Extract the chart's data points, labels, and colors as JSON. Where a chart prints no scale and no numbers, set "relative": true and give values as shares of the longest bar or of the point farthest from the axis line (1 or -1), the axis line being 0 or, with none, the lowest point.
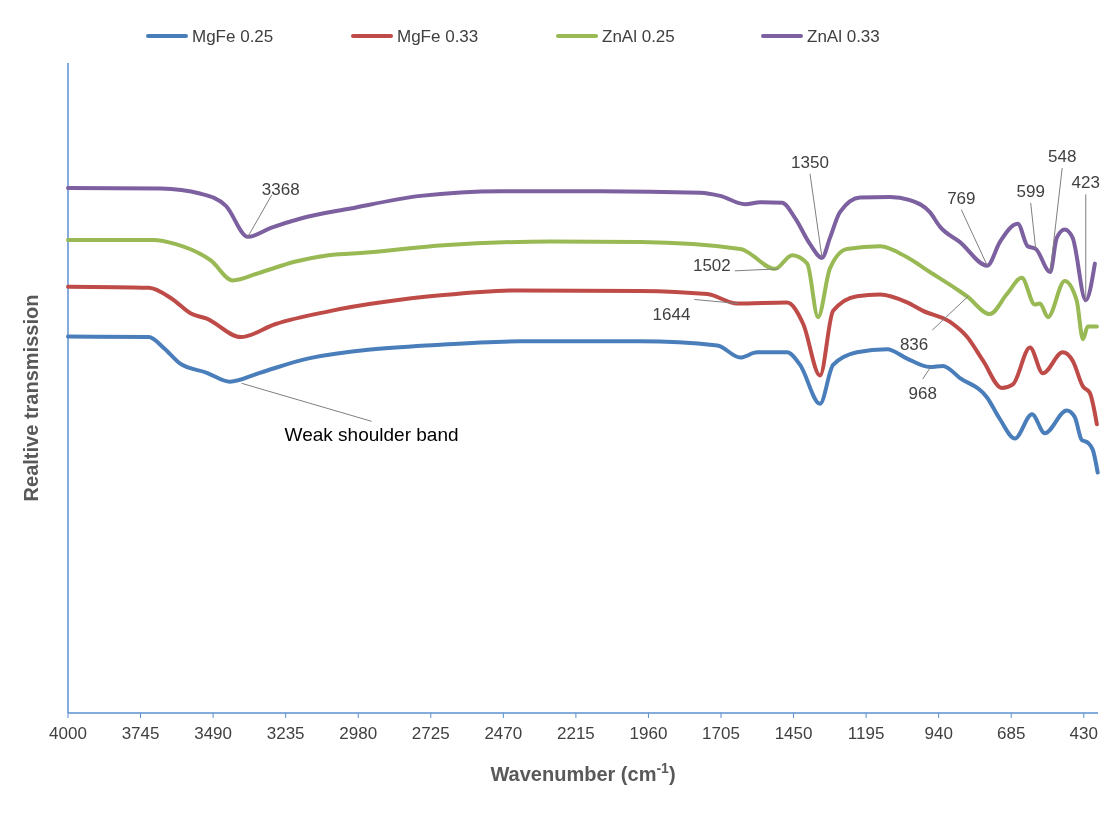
{
  "chart_data": {
    "type": "line",
    "relative": true,
    "xlabel": "Wavenumber (cm$^{-1}$)",
    "ylabel": "Realtive transmission",
    "legend": "top",
    "xlim": [
      4000,
      380
    ],
    "xticks": [
      4000,
      3745,
      3490,
      3235,
      2980,
      2725,
      2470,
      2215,
      1960,
      1705,
      1450,
      1195,
      940,
      685,
      430
    ],
    "series": [
      {
        "name": "MgFe 0.25",
        "color": "#4a7ebb",
        "x": [
          4000,
          3716,
          3663,
          3607,
          3512,
          3431,
          3326,
          3150,
          2680,
          2410,
          1989,
          1718,
          1637,
          1578,
          1473,
          1427,
          1357,
          1311,
          1227,
          1121,
          1051,
          971,
          925,
          865,
          770,
          725,
          672,
          612,
          567,
          490,
          462,
          437,
          416,
          398,
          381
        ],
        "values": [
          0.717,
          0.716,
          0.695,
          0.666,
          0.648,
          0.631,
          0.648,
          0.676,
          0.702,
          0.708,
          0.708,
          0.7,
          0.677,
          0.687,
          0.687,
          0.663,
          0.589,
          0.663,
          0.687,
          0.693,
          0.675,
          0.659,
          0.661,
          0.638,
          0.601,
          0.56,
          0.523,
          0.569,
          0.533,
          0.576,
          0.564,
          0.52,
          0.515,
          0.501,
          0.458
        ]
      },
      {
        "name": "MgFe 0.33",
        "color": "#be4b48",
        "x": [
          4000,
          3716,
          3635,
          3568,
          3512,
          3393,
          3270,
          3084,
          2680,
          2410,
          1989,
          1753,
          1648,
          1473,
          1416,
          1357,
          1311,
          1227,
          1146,
          1051,
          995,
          900,
          841,
          784,
          718,
          679,
          619,
          574,
          504,
          469,
          433,
          409,
          384
        ],
        "values": [
          0.812,
          0.81,
          0.789,
          0.761,
          0.751,
          0.716,
          0.741,
          0.765,
          0.796,
          0.805,
          0.804,
          0.798,
          0.78,
          0.782,
          0.741,
          0.643,
          0.766,
          0.794,
          0.797,
          0.782,
          0.766,
          0.745,
          0.717,
          0.671,
          0.619,
          0.626,
          0.696,
          0.647,
          0.687,
          0.671,
          0.622,
          0.61,
          0.55
        ]
      },
      {
        "name": "ZnAl 0.25",
        "color": "#98b954",
        "x": [
          4000,
          3700,
          3621,
          3498,
          3421,
          3330,
          3200,
          3084,
          2950,
          2680,
          2300,
          1989,
          1637,
          1515,
          1455,
          1402,
          1364,
          1322,
          1262,
          1146,
          1051,
          971,
          876,
          841,
          760,
          700,
          648,
          602,
          584,
          556,
          497,
          455,
          433,
          416,
          384
        ],
        "values": [
          0.901,
          0.901,
          0.893,
          0.862,
          0.824,
          0.838,
          0.86,
          0.872,
          0.877,
          0.891,
          0.898,
          0.897,
          0.884,
          0.846,
          0.872,
          0.856,
          0.754,
          0.847,
          0.884,
          0.889,
          0.868,
          0.84,
          0.807,
          0.794,
          0.76,
          0.798,
          0.829,
          0.778,
          0.78,
          0.754,
          0.823,
          0.786,
          0.712,
          0.736,
          0.736
        ]
      },
      {
        "name": "ZnAl 0.33",
        "color": "#7d60a0",
        "x": [
          4000,
          3674,
          3533,
          3445,
          3368,
          3287,
          3182,
          3007,
          2761,
          2480,
          2129,
          1778,
          1708,
          1620,
          1567,
          1490,
          1444,
          1392,
          1350,
          1322,
          1287,
          1216,
          1111,
          1041,
          971,
          935,
          865,
          769,
          725,
          662,
          627,
          599,
          548,
          525,
          497,
          469,
          423,
          391
        ],
        "values": [
          1.0,
          0.999,
          0.989,
          0.966,
          0.907,
          0.924,
          0.942,
          0.961,
          0.985,
          0.994,
          0.994,
          0.991,
          0.985,
          0.969,
          0.973,
          0.972,
          0.942,
          0.893,
          0.867,
          0.905,
          0.954,
          0.982,
          0.983,
          0.977,
          0.954,
          0.926,
          0.897,
          0.852,
          0.897,
          0.932,
          0.889,
          0.884,
          0.84,
          0.905,
          0.921,
          0.905,
          0.786,
          0.856
        ]
      }
    ],
    "annotations": [
      {
        "text": "3368",
        "x": 3368,
        "y": 0.907
      },
      {
        "text": "1350",
        "x": 1350,
        "y": 0.867
      },
      {
        "text": "769",
        "x": 769,
        "y": 0.852
      },
      {
        "text": "599",
        "x": 599,
        "y": 0.884
      },
      {
        "text": "548",
        "x": 548,
        "y": 0.84
      },
      {
        "text": "423",
        "x": 423,
        "y": 0.786
      },
      {
        "text": "1502",
        "x": 1502,
        "y": 0.846
      },
      {
        "text": "1644",
        "x": 1644,
        "y": 0.78
      },
      {
        "text": "836",
        "x": 836,
        "y": 0.794
      },
      {
        "text": "968",
        "x": 968,
        "y": 0.659
      },
      {
        "text": "Weak shoulder band",
        "x": 3390,
        "y": 0.628
      }
    ]
  }
}
